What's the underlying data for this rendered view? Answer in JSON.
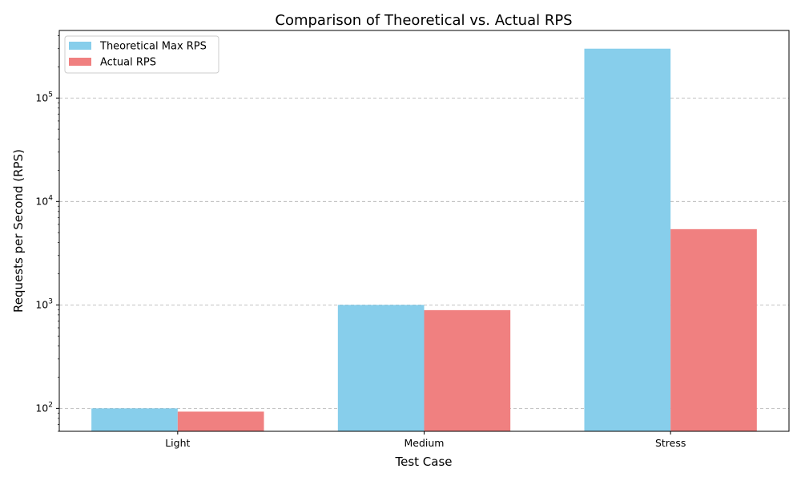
{
  "chart_data": {
    "type": "bar",
    "title": "Comparison of Theoretical vs. Actual RPS",
    "xlabel": "Test Case",
    "ylabel": "Requests per Second (RPS)",
    "categories": [
      "Light",
      "Medium",
      "Stress"
    ],
    "series": [
      {
        "name": "Theoretical Max RPS",
        "values": [
          100,
          1000,
          300000
        ],
        "color": "#87CEEB"
      },
      {
        "name": "Actual RPS",
        "values": [
          93,
          890,
          5400
        ],
        "color": "#F08080"
      }
    ],
    "yscale": "log",
    "ylim": [
      60,
      450000
    ],
    "yticks": [
      {
        "base": "10",
        "exp": "2",
        "value": 100
      },
      {
        "base": "10",
        "exp": "3",
        "value": 1000
      },
      {
        "base": "10",
        "exp": "4",
        "value": 10000
      },
      {
        "base": "10",
        "exp": "5",
        "value": 100000
      }
    ],
    "grid": "y-dashed",
    "legend_position": "top-left"
  }
}
